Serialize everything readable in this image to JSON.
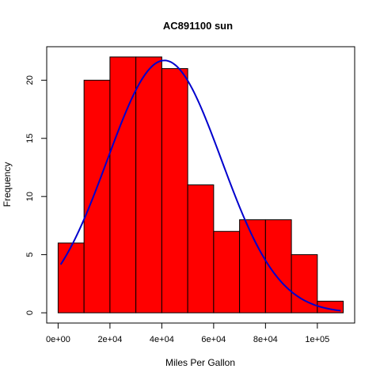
{
  "chart_data": {
    "type": "bar",
    "title": "AC891100 sun",
    "xlabel": "Miles Per Gallon",
    "ylabel": "Frequency",
    "x_ticks": [
      "0e+00",
      "2e+04",
      "4e+04",
      "6e+04",
      "8e+04",
      "1e+05"
    ],
    "x_tick_values": [
      0,
      20000,
      40000,
      60000,
      80000,
      100000
    ],
    "y_ticks": [
      "0",
      "5",
      "10",
      "15",
      "20"
    ],
    "y_tick_values": [
      0,
      5,
      10,
      15,
      20
    ],
    "xlim": [
      -4400,
      114400
    ],
    "ylim": [
      -0.88,
      22.88
    ],
    "bins": [
      {
        "start": 0,
        "end": 10000,
        "count": 6
      },
      {
        "start": 10000,
        "end": 20000,
        "count": 20
      },
      {
        "start": 20000,
        "end": 30000,
        "count": 22
      },
      {
        "start": 30000,
        "end": 40000,
        "count": 22
      },
      {
        "start": 40000,
        "end": 50000,
        "count": 21
      },
      {
        "start": 50000,
        "end": 60000,
        "count": 11
      },
      {
        "start": 60000,
        "end": 70000,
        "count": 7
      },
      {
        "start": 70000,
        "end": 80000,
        "count": 8
      },
      {
        "start": 80000,
        "end": 90000,
        "count": 8
      },
      {
        "start": 90000,
        "end": 100000,
        "count": 5
      },
      {
        "start": 100000,
        "end": 110000,
        "count": 1
      }
    ],
    "density_curve": {
      "mean": 41000,
      "sd": 22000,
      "peak": 21.7,
      "x_start": 1000,
      "x_end": 109000
    },
    "bar_color": "#ff0000",
    "bar_border_color": "#000000",
    "curve_color": "#0000cd",
    "grid": false,
    "legend": "none"
  }
}
